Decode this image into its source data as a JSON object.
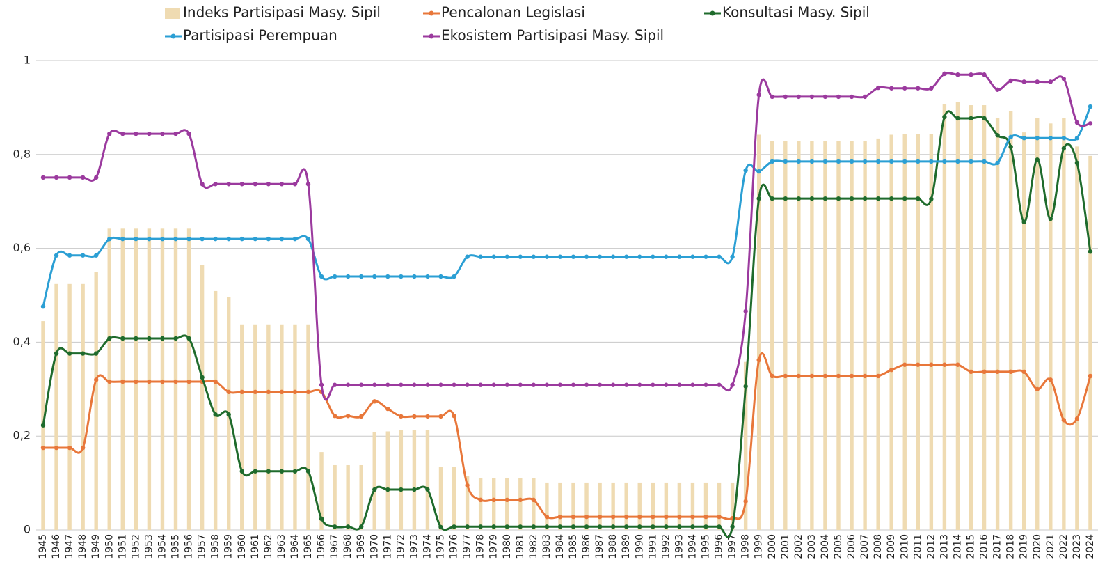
{
  "chart_data": {
    "type": "combo",
    "categories": [
      "1945",
      "1946",
      "1947",
      "1948",
      "1949",
      "1950",
      "1951",
      "1952",
      "1953",
      "1954",
      "1955",
      "1956",
      "1957",
      "1958",
      "1959",
      "1960",
      "1961",
      "1962",
      "1963",
      "1964",
      "1965",
      "1966",
      "1967",
      "1968",
      "1969",
      "1970",
      "1971",
      "1972",
      "1973",
      "1974",
      "1975",
      "1976",
      "1977",
      "1978",
      "1979",
      "1980",
      "1981",
      "1982",
      "1983",
      "1984",
      "1985",
      "1986",
      "1987",
      "1988",
      "1989",
      "1990",
      "1991",
      "1992",
      "1993",
      "1994",
      "1995",
      "1996",
      "1997",
      "1998",
      "1999",
      "2000",
      "2001",
      "2002",
      "2003",
      "2004",
      "2005",
      "2006",
      "2007",
      "2008",
      "2009",
      "2010",
      "2011",
      "2012",
      "2013",
      "2014",
      "2015",
      "2016",
      "2017",
      "2018",
      "2019",
      "2020",
      "2021",
      "2022",
      "2023",
      "2024"
    ],
    "series": [
      {
        "name": "Indeks Partisipasi Masy. Sipil",
        "type": "bar",
        "color": "#efdbb2",
        "values": [
          0.445,
          0.524,
          0.524,
          0.524,
          0.55,
          0.642,
          0.642,
          0.642,
          0.642,
          0.642,
          0.642,
          0.642,
          0.564,
          0.509,
          0.496,
          0.438,
          0.438,
          0.438,
          0.438,
          0.438,
          0.438,
          0.166,
          0.138,
          0.138,
          0.138,
          0.208,
          0.21,
          0.213,
          0.213,
          0.213,
          0.134,
          0.134,
          0.115,
          0.11,
          0.11,
          0.11,
          0.11,
          0.11,
          0.101,
          0.101,
          0.101,
          0.101,
          0.101,
          0.101,
          0.101,
          0.101,
          0.101,
          0.101,
          0.101,
          0.101,
          0.101,
          0.101,
          0.101,
          0.358,
          0.842,
          0.829,
          0.829,
          0.829,
          0.829,
          0.829,
          0.829,
          0.829,
          0.829,
          0.834,
          0.842,
          0.843,
          0.843,
          0.843,
          0.908,
          0.911,
          0.905,
          0.905,
          0.877,
          0.892,
          0.847,
          0.877,
          0.866,
          0.877,
          0.817,
          0.797
        ]
      },
      {
        "name": "Pencalonan Legislasi",
        "type": "line",
        "color": "#e8773a",
        "values": [
          0.175,
          0.175,
          0.175,
          0.175,
          0.32,
          0.316,
          0.316,
          0.316,
          0.316,
          0.316,
          0.316,
          0.316,
          0.316,
          0.316,
          0.294,
          0.294,
          0.294,
          0.294,
          0.294,
          0.294,
          0.294,
          0.294,
          0.243,
          0.243,
          0.242,
          0.274,
          0.258,
          0.242,
          0.242,
          0.242,
          0.242,
          0.243,
          0.095,
          0.064,
          0.064,
          0.064,
          0.064,
          0.064,
          0.028,
          0.028,
          0.028,
          0.028,
          0.028,
          0.028,
          0.028,
          0.028,
          0.028,
          0.028,
          0.028,
          0.028,
          0.028,
          0.028,
          0.025,
          0.061,
          0.362,
          0.328,
          0.328,
          0.328,
          0.328,
          0.328,
          0.328,
          0.328,
          0.328,
          0.328,
          0.341,
          0.352,
          0.352,
          0.352,
          0.352,
          0.352,
          0.337,
          0.337,
          0.337,
          0.337,
          0.337,
          0.3,
          0.32,
          0.234,
          0.237,
          0.328
        ]
      },
      {
        "name": "Konsultasi Masy. Sipil",
        "type": "line",
        "color": "#1f6b2c",
        "values": [
          0.223,
          0.376,
          0.376,
          0.376,
          0.376,
          0.408,
          0.408,
          0.408,
          0.408,
          0.408,
          0.408,
          0.408,
          0.325,
          0.246,
          0.246,
          0.125,
          0.125,
          0.125,
          0.125,
          0.125,
          0.125,
          0.024,
          0.007,
          0.007,
          0.007,
          0.086,
          0.086,
          0.086,
          0.086,
          0.086,
          0.006,
          0.007,
          0.007,
          0.007,
          0.007,
          0.007,
          0.007,
          0.007,
          0.007,
          0.007,
          0.007,
          0.007,
          0.007,
          0.007,
          0.007,
          0.007,
          0.007,
          0.007,
          0.007,
          0.007,
          0.007,
          0.007,
          0.007,
          0.306,
          0.706,
          0.706,
          0.706,
          0.706,
          0.706,
          0.706,
          0.706,
          0.706,
          0.706,
          0.706,
          0.706,
          0.706,
          0.706,
          0.705,
          0.88,
          0.877,
          0.877,
          0.877,
          0.841,
          0.816,
          0.656,
          0.789,
          0.663,
          0.813,
          0.782,
          0.593
        ]
      },
      {
        "name": "Partisipasi Perempuan",
        "type": "line",
        "color": "#2b9fd4",
        "values": [
          0.476,
          0.585,
          0.585,
          0.585,
          0.585,
          0.62,
          0.62,
          0.62,
          0.62,
          0.62,
          0.62,
          0.62,
          0.62,
          0.62,
          0.62,
          0.62,
          0.62,
          0.62,
          0.62,
          0.62,
          0.62,
          0.54,
          0.54,
          0.54,
          0.54,
          0.54,
          0.54,
          0.54,
          0.54,
          0.54,
          0.54,
          0.54,
          0.582,
          0.582,
          0.582,
          0.582,
          0.582,
          0.582,
          0.582,
          0.582,
          0.582,
          0.582,
          0.582,
          0.582,
          0.582,
          0.582,
          0.582,
          0.582,
          0.582,
          0.582,
          0.582,
          0.582,
          0.582,
          0.766,
          0.764,
          0.785,
          0.785,
          0.785,
          0.785,
          0.785,
          0.785,
          0.785,
          0.785,
          0.785,
          0.785,
          0.785,
          0.785,
          0.785,
          0.785,
          0.785,
          0.785,
          0.785,
          0.782,
          0.837,
          0.835,
          0.835,
          0.835,
          0.835,
          0.835,
          0.902
        ]
      },
      {
        "name": "Ekosistem Partisipasi Masy. Sipil",
        "type": "line",
        "color": "#9b3a9e",
        "values": [
          0.751,
          0.751,
          0.751,
          0.751,
          0.751,
          0.844,
          0.844,
          0.844,
          0.844,
          0.844,
          0.844,
          0.844,
          0.737,
          0.737,
          0.737,
          0.737,
          0.737,
          0.737,
          0.737,
          0.737,
          0.737,
          0.309,
          0.309,
          0.309,
          0.309,
          0.309,
          0.309,
          0.309,
          0.309,
          0.309,
          0.309,
          0.309,
          0.309,
          0.309,
          0.309,
          0.309,
          0.309,
          0.309,
          0.309,
          0.309,
          0.309,
          0.309,
          0.309,
          0.309,
          0.309,
          0.309,
          0.309,
          0.309,
          0.309,
          0.309,
          0.309,
          0.309,
          0.309,
          0.466,
          0.927,
          0.923,
          0.923,
          0.923,
          0.923,
          0.923,
          0.923,
          0.923,
          0.923,
          0.942,
          0.941,
          0.941,
          0.941,
          0.941,
          0.972,
          0.97,
          0.97,
          0.97,
          0.938,
          0.957,
          0.955,
          0.955,
          0.955,
          0.961,
          0.868,
          0.866
        ]
      }
    ],
    "ylim": [
      0,
      1
    ],
    "yticks": [
      0,
      {
        "value": 0.2,
        "label": "0,2"
      },
      {
        "value": 0.4,
        "label": "0,4"
      },
      {
        "value": 0.6,
        "label": "0,6"
      },
      {
        "value": 0.8,
        "label": "0,8"
      },
      1
    ],
    "grid": true
  }
}
